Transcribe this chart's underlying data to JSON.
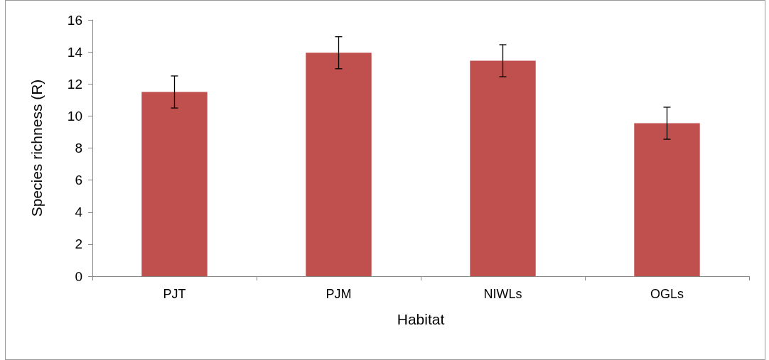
{
  "chart_data": {
    "type": "bar",
    "xlabel": "Habitat",
    "ylabel": "Species richness (R)",
    "categories": [
      "PJT",
      "PJM",
      "NIWLs",
      "OGLs"
    ],
    "values": [
      11.5,
      13.95,
      13.45,
      9.55
    ],
    "errors": [
      1,
      1,
      1,
      1
    ],
    "color": "#c0504d",
    "ylim": [
      0,
      16
    ],
    "yticks": [
      0,
      2,
      4,
      6,
      8,
      10,
      12,
      14,
      16
    ],
    "grid": false
  }
}
